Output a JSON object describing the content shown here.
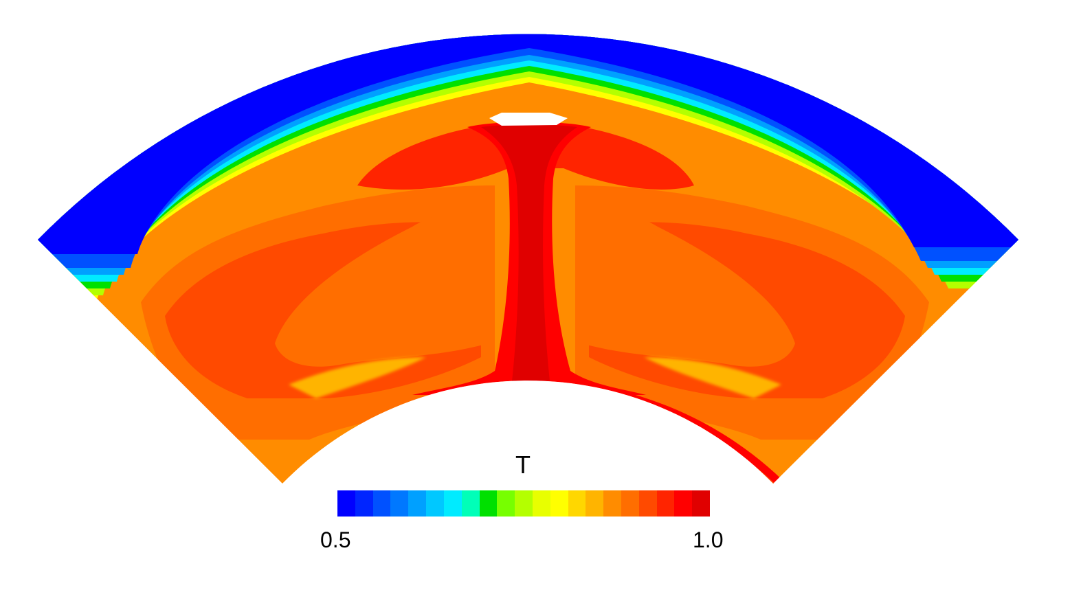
{
  "figure": {
    "colorbar": {
      "title": "T",
      "min_label": "0.5",
      "max_label": "1.0",
      "range": [
        0.5,
        1.0
      ],
      "colors": [
        "#0000ff",
        "#0025ff",
        "#0051ff",
        "#0078ff",
        "#00a0ff",
        "#00c8ff",
        "#00ebff",
        "#00ffb8",
        "#00e000",
        "#77ff00",
        "#b4ff00",
        "#e8ff00",
        "#ffff00",
        "#ffd700",
        "#ffb400",
        "#ff8c00",
        "#ff6e00",
        "#ff4a00",
        "#ff2400",
        "#ff0000",
        "#e00000"
      ]
    }
  }
}
